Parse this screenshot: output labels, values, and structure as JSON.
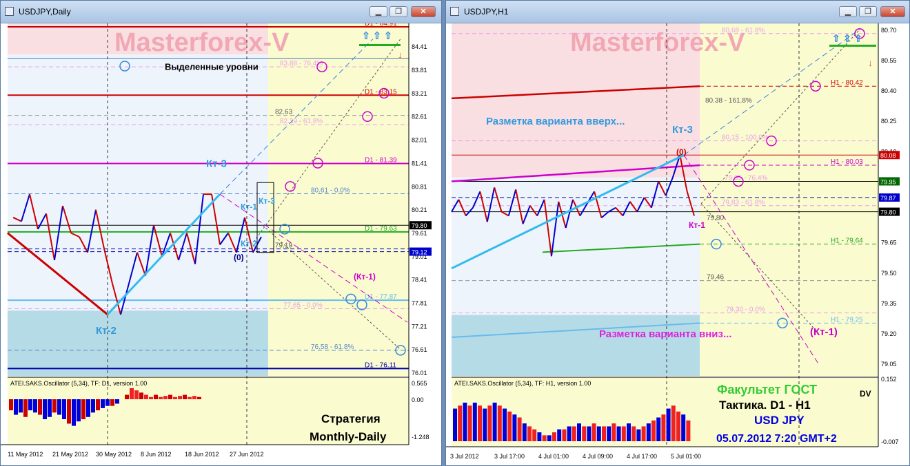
{
  "windows": {
    "left": {
      "title": "USDJPY,Daily"
    },
    "right": {
      "title": "USDJPY,H1"
    }
  },
  "controls": {
    "minimize": "▁",
    "restore": "❐",
    "close": "✕"
  },
  "chart_data": [
    {
      "type": "line",
      "symbol": "USDJPY",
      "timeframe": "Daily",
      "watermark": "Masterforex-V",
      "price_axis_ticks": [
        "84.41",
        "83.81",
        "83.21",
        "82.61",
        "82.01",
        "81.41",
        "80.81",
        "80.21",
        "79.61",
        "79.01",
        "78.41",
        "77.81",
        "77.21",
        "76.61",
        "76.01"
      ],
      "price_tags": [
        {
          "text": "79.80",
          "bg": "#000000"
        },
        {
          "text": "79.12",
          "bg": "#0000cc"
        }
      ],
      "time_axis": [
        "11 May 2012",
        "21 May 2012",
        "30 May 2012",
        "8 Jun 2012",
        "18 Jun 2012",
        "27 Jun 2012"
      ],
      "levels": [
        {
          "label": "D1 - 84.91",
          "color": "#cc0000"
        },
        {
          "label": "83.88 - 76.4%",
          "color": "#e8a0e8"
        },
        {
          "label": "D1 - 83.15",
          "color": "#cc0000"
        },
        {
          "label": "82.63",
          "color": "#555555"
        },
        {
          "label": "82.39 - 61.8%",
          "color": "#e8a0e8"
        },
        {
          "label": "D1 - 81.39",
          "color": "#cc00cc"
        },
        {
          "label": "80.61 - 0.0%",
          "color": "#5588cc"
        },
        {
          "label": "D1 - 79.63",
          "color": "#22aa22"
        },
        {
          "label": "79.19",
          "color": "#555555"
        },
        {
          "label": "D1 - 77.87",
          "color": "#66bbee"
        },
        {
          "label": "77.65 - 0.0%",
          "color": "#e8a0e8"
        },
        {
          "label": "76.58 - 61.8%",
          "color": "#5588cc"
        },
        {
          "label": "D1 - 76.11",
          "color": "#0000aa"
        }
      ],
      "price_series": [
        80.0,
        79.9,
        80.6,
        79.7,
        80.1,
        78.9,
        80.3,
        79.6,
        79.5,
        79.1,
        80.2,
        79.2,
        78.3,
        77.5,
        78.3,
        79.1,
        78.5,
        79.8,
        79.0,
        79.6,
        78.9,
        79.6,
        78.8,
        80.6,
        80.6,
        79.3,
        79.6,
        79.1,
        80.0,
        79.1,
        79.5
      ],
      "annotations": [
        "Выделенные уровни",
        "Кт-3",
        "Кт-2",
        "Кт-1",
        "Кт-3",
        "Кт-2",
        "(0)",
        "(Кт-1)"
      ],
      "oscillator": {
        "title": "ATEI.SAKS.Oscillator (5,34), TF: D1, version 1.00",
        "axis": [
          "0.565",
          "0.00",
          "-1.248"
        ],
        "values": [
          -0.5,
          -0.7,
          -0.6,
          -0.8,
          -0.5,
          -0.6,
          -0.7,
          -0.9,
          -0.8,
          -0.6,
          -0.7,
          -0.9,
          -1.1,
          -1.2,
          -1.0,
          -0.9,
          -0.8,
          -0.6,
          -0.5,
          -0.4,
          -0.3,
          -0.3,
          -0.2,
          0.0,
          0.2,
          0.5,
          0.4,
          0.3,
          0.2,
          0.1,
          0.2,
          0.1,
          0.15,
          0.2,
          0.1,
          0.15,
          0.2,
          0.1,
          0.15,
          0.1
        ]
      },
      "caption": [
        "Стратегия",
        "Monthly-Daily"
      ]
    },
    {
      "type": "line",
      "symbol": "USDJPY",
      "timeframe": "H1",
      "watermark": "Masterforex-V",
      "price_axis_ticks": [
        "80.70",
        "80.55",
        "80.40",
        "80.25",
        "80.10",
        "79.95",
        "79.80",
        "79.65",
        "79.50",
        "79.35",
        "79.20",
        "79.05"
      ],
      "price_tags": [
        {
          "text": "80.08",
          "bg": "#cc0000"
        },
        {
          "text": "79.95",
          "bg": "#006600"
        },
        {
          "text": "79.87",
          "bg": "#0000cc"
        },
        {
          "text": "79.80",
          "bg": "#000000"
        }
      ],
      "time_axis": [
        "3 Jul 2012",
        "3 Jul 17:00",
        "4 Jul 01:00",
        "4 Jul 09:00",
        "4 Jul 17:00",
        "5 Jul 01:00"
      ],
      "levels": [
        {
          "label": "80.68 - 61.8%",
          "color": "#e8a0e8"
        },
        {
          "label": "H1 - 80.42",
          "color": "#cc0000"
        },
        {
          "label": "80.38 - 161.8%",
          "color": "#555555"
        },
        {
          "label": "80.15 - 100.0%",
          "color": "#e8a0e8"
        },
        {
          "label": "H1 - 80.03",
          "color": "#cc00cc"
        },
        {
          "label": "79.95 - 76.4%",
          "color": "#e8a0e8"
        },
        {
          "label": "79.83 - 61.8%",
          "color": "#e8a0e8"
        },
        {
          "label": "79.80",
          "color": "#555555"
        },
        {
          "label": "H1 - 79.64",
          "color": "#22aa22"
        },
        {
          "label": "79.46",
          "color": "#555555"
        },
        {
          "label": "79.30 - 0.0%",
          "color": "#e8a0e8"
        },
        {
          "label": "H1 - 79.25",
          "color": "#66bbee"
        }
      ],
      "price_series": [
        79.8,
        79.86,
        79.78,
        79.82,
        79.9,
        79.75,
        79.92,
        79.8,
        79.78,
        79.91,
        79.74,
        79.83,
        79.78,
        79.86,
        79.58,
        79.85,
        79.72,
        79.86,
        79.78,
        79.84,
        79.9,
        79.77,
        79.8,
        79.82,
        79.78,
        79.85,
        79.8,
        79.87,
        79.82,
        79.95,
        79.88,
        79.97,
        80.08,
        79.9,
        79.78
      ],
      "annotations": [
        "Разметка варианта вверх...",
        "Кт-3",
        "(0)",
        "Кт-1",
        "Разметка варианта вниз...",
        "(Кт-1)"
      ],
      "oscillator": {
        "title": "ATEI.SAKS.Oscillator (5,34), TF: H1, version 1.00",
        "axis": [
          "0.152",
          "-0.007"
        ],
        "values": [
          0.11,
          0.12,
          0.13,
          0.12,
          0.13,
          0.12,
          0.11,
          0.12,
          0.13,
          0.12,
          0.11,
          0.1,
          0.09,
          0.08,
          0.06,
          0.05,
          0.04,
          0.03,
          0.02,
          0.02,
          0.03,
          0.04,
          0.04,
          0.05,
          0.05,
          0.06,
          0.05,
          0.05,
          0.06,
          0.05,
          0.05,
          0.05,
          0.06,
          0.05,
          0.05,
          0.06,
          0.05,
          0.04,
          0.05,
          0.06,
          0.07,
          0.08,
          0.09,
          0.11,
          0.12,
          0.1,
          0.09,
          0.07
        ]
      },
      "caption": {
        "faculty": "Факультет ГОСТ",
        "tactic": "Тактика. D1 - H1",
        "pair": "USD JPY",
        "date": "05.07.2012 7:20 GMT+2",
        "initials": "DV"
      }
    }
  ]
}
